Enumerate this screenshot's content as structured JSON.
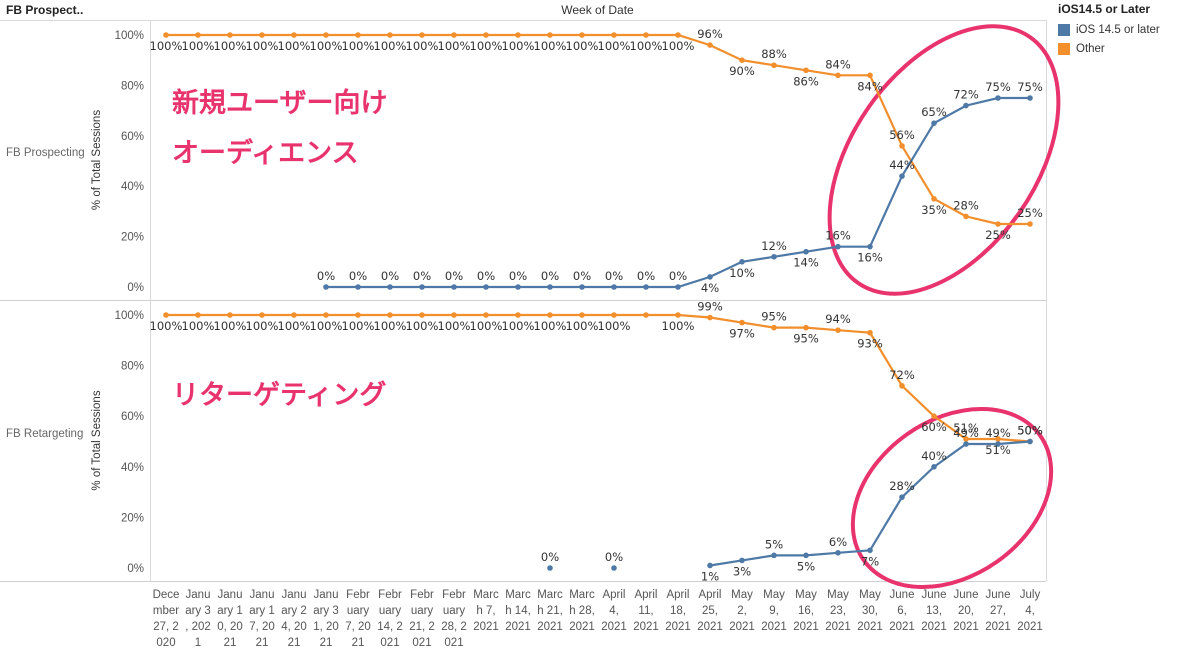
{
  "header": {
    "left_label": "FB Prospect..",
    "title": "Week of Date"
  },
  "legend": {
    "title": "iOS14.5 or Later",
    "items": [
      {
        "name": "iOS 14.5 or later",
        "color": "#4e79a7"
      },
      {
        "name": "Other",
        "color": "#f28e2b"
      }
    ]
  },
  "annotation_color": "#e8336d",
  "chart_data": {
    "type": "line",
    "ylabel": "% of Total Sessions",
    "ylim": [
      0,
      100
    ],
    "y_ticks": [
      "0%",
      "20%",
      "40%",
      "60%",
      "80%",
      "100%"
    ],
    "categories": [
      [
        "Dece",
        "mber",
        "27, 2",
        "020"
      ],
      [
        "Janu",
        "ary 3",
        ", 202",
        "1"
      ],
      [
        "Janu",
        "ary 1",
        "0, 20",
        "21"
      ],
      [
        "Janu",
        "ary 1",
        "7, 20",
        "21"
      ],
      [
        "Janu",
        "ary 2",
        "4, 20",
        "21"
      ],
      [
        "Janu",
        "ary 3",
        "1, 20",
        "21"
      ],
      [
        "Febr",
        "uary",
        "7, 20",
        "21"
      ],
      [
        "Febr",
        "uary",
        "14, 2",
        "021"
      ],
      [
        "Febr",
        "uary",
        "21, 2",
        "021"
      ],
      [
        "Febr",
        "uary",
        "28, 2",
        "021"
      ],
      [
        "Marc",
        "h 7,",
        "2021"
      ],
      [
        "Marc",
        "h 14,",
        "2021"
      ],
      [
        "Marc",
        "h 21,",
        "2021"
      ],
      [
        "Marc",
        "h 28,",
        "2021"
      ],
      [
        "April",
        "4,",
        "2021"
      ],
      [
        "April",
        "11,",
        "2021"
      ],
      [
        "April",
        "18,",
        "2021"
      ],
      [
        "April",
        "25,",
        "2021"
      ],
      [
        "May",
        "2,",
        "2021"
      ],
      [
        "May",
        "9,",
        "2021"
      ],
      [
        "May",
        "16,",
        "2021"
      ],
      [
        "May",
        "23,",
        "2021"
      ],
      [
        "May",
        "30,",
        "2021"
      ],
      [
        "June",
        "6,",
        "2021"
      ],
      [
        "June",
        "13,",
        "2021"
      ],
      [
        "June",
        "20,",
        "2021"
      ],
      [
        "June",
        "27,",
        "2021"
      ],
      [
        "July",
        "4,",
        "2021"
      ]
    ],
    "panels": [
      {
        "row_label": "FB Prospecting",
        "annotation": [
          "新規ユーザー向け",
          "オーディエンス"
        ],
        "series": [
          {
            "name": "iOS 14.5 or later",
            "color": "#4e79a7",
            "values": [
              null,
              null,
              null,
              null,
              null,
              0,
              0,
              0,
              0,
              0,
              0,
              0,
              0,
              0,
              0,
              0,
              0,
              4,
              10,
              12,
              14,
              16,
              16,
              44,
              65,
              72,
              75,
              75
            ],
            "labels": [
              null,
              null,
              null,
              null,
              null,
              "0%",
              "0%",
              "0%",
              "0%",
              "0%",
              "0%",
              "0%",
              "0%",
              "0%",
              "0%",
              "0%",
              "0%",
              "4%",
              "10%",
              "12%",
              "14%",
              "16%",
              "16%",
              "44%",
              "65%",
              "72%",
              "75%",
              "75%"
            ]
          },
          {
            "name": "Other",
            "color": "#f28e2b",
            "values": [
              100,
              100,
              100,
              100,
              100,
              100,
              100,
              100,
              100,
              100,
              100,
              100,
              100,
              100,
              100,
              100,
              100,
              96,
              90,
              88,
              86,
              84,
              84,
              56,
              35,
              28,
              25,
              25
            ],
            "labels": [
              "100%",
              "100%",
              "100%",
              "100%",
              "100%",
              "100%",
              "100%",
              "100%",
              "100%",
              "100%",
              "100%",
              "100%",
              "100%",
              "100%",
              "100%",
              "100%",
              "100%",
              "96%",
              "90%",
              "88%",
              "86%",
              "84%",
              "84%",
              "56%",
              "35%",
              "28%",
              "25%",
              "25%"
            ]
          }
        ]
      },
      {
        "row_label": "FB Retargeting",
        "annotation": [
          "リターゲティング"
        ],
        "series": [
          {
            "name": "iOS 14.5 or later",
            "color": "#4e79a7",
            "values": [
              null,
              null,
              null,
              null,
              null,
              null,
              null,
              null,
              null,
              null,
              null,
              null,
              0,
              null,
              0,
              null,
              null,
              1,
              3,
              5,
              5,
              6,
              7,
              28,
              40,
              49,
              49,
              50
            ],
            "labels": [
              null,
              null,
              null,
              null,
              null,
              null,
              null,
              null,
              null,
              null,
              null,
              null,
              "0%",
              null,
              "0%",
              null,
              null,
              "1%",
              "3%",
              "5%",
              "5%",
              "6%",
              "7%",
              "28%",
              "40%",
              "49%",
              "49%",
              "50%"
            ]
          },
          {
            "name": "Other",
            "color": "#f28e2b",
            "values": [
              100,
              100,
              100,
              100,
              100,
              100,
              100,
              100,
              100,
              100,
              100,
              100,
              100,
              100,
              100,
              100,
              100,
              99,
              97,
              95,
              95,
              94,
              93,
              72,
              60,
              51,
              51,
              50
            ],
            "labels": [
              "100%",
              "100%",
              "100%",
              "100%",
              "100%",
              "100%",
              "100%",
              "100%",
              "100%",
              "100%",
              "100%",
              "100%",
              "100%",
              "100%",
              "100%",
              null,
              "100%",
              "99%",
              "97%",
              "95%",
              "95%",
              "94%",
              "93%",
              "72%",
              "60%",
              "51%",
              "51%",
              "50%"
            ]
          }
        ]
      }
    ]
  }
}
